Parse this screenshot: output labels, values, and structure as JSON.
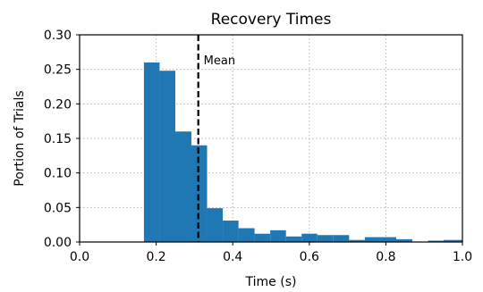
{
  "chart_data": {
    "type": "bar",
    "title": "Recovery Times",
    "xlabel": "Time (s)",
    "ylabel": "Portion of Trials",
    "xlim": [
      0.0,
      1.0
    ],
    "ylim": [
      0.0,
      0.3
    ],
    "xticks": [
      "0.0",
      "0.2",
      "0.4",
      "0.6",
      "0.8",
      "1.0"
    ],
    "xtick_values": [
      0.0,
      0.2,
      0.4,
      0.6,
      0.8,
      1.0
    ],
    "yticks": [
      "0.00",
      "0.05",
      "0.10",
      "0.15",
      "0.20",
      "0.25",
      "0.30"
    ],
    "ytick_values": [
      0.0,
      0.05,
      0.1,
      0.15,
      0.2,
      0.25,
      0.3
    ],
    "grid": true,
    "bar_color": "#1f77b4",
    "bins": [
      {
        "start": 0.168,
        "end": 0.209,
        "value": 0.26
      },
      {
        "start": 0.209,
        "end": 0.25,
        "value": 0.248
      },
      {
        "start": 0.25,
        "end": 0.292,
        "value": 0.16
      },
      {
        "start": 0.292,
        "end": 0.333,
        "value": 0.14
      },
      {
        "start": 0.333,
        "end": 0.374,
        "value": 0.049
      },
      {
        "start": 0.374,
        "end": 0.415,
        "value": 0.031
      },
      {
        "start": 0.415,
        "end": 0.457,
        "value": 0.02
      },
      {
        "start": 0.457,
        "end": 0.498,
        "value": 0.012
      },
      {
        "start": 0.498,
        "end": 0.539,
        "value": 0.017
      },
      {
        "start": 0.539,
        "end": 0.58,
        "value": 0.008
      },
      {
        "start": 0.58,
        "end": 0.621,
        "value": 0.012
      },
      {
        "start": 0.621,
        "end": 0.663,
        "value": 0.01
      },
      {
        "start": 0.663,
        "end": 0.704,
        "value": 0.01
      },
      {
        "start": 0.704,
        "end": 0.745,
        "value": 0.003
      },
      {
        "start": 0.745,
        "end": 0.786,
        "value": 0.007
      },
      {
        "start": 0.786,
        "end": 0.827,
        "value": 0.007
      },
      {
        "start": 0.827,
        "end": 0.869,
        "value": 0.004
      },
      {
        "start": 0.869,
        "end": 0.91,
        "value": 0.0
      },
      {
        "start": 0.91,
        "end": 0.951,
        "value": 0.002
      },
      {
        "start": 0.951,
        "end": 1.0,
        "value": 0.003
      }
    ],
    "mean_line": {
      "x": 0.31,
      "label": "Mean"
    }
  }
}
